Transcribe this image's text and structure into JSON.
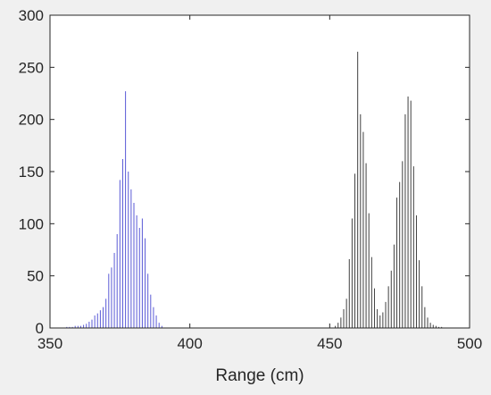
{
  "chart_data": {
    "type": "bar",
    "title": "",
    "xlabel": "Range (cm)",
    "ylabel": "",
    "xlim": [
      350,
      500
    ],
    "ylim": [
      0,
      300
    ],
    "xticks": [
      350,
      400,
      450,
      500
    ],
    "yticks": [
      0,
      50,
      100,
      150,
      200,
      250,
      300
    ],
    "grid": false,
    "series": [
      {
        "color": "#5a5ad6",
        "x": [
          356,
          357,
          358,
          359,
          360,
          361,
          362,
          363,
          364,
          365,
          366,
          367,
          368,
          369,
          370,
          371,
          372,
          373,
          374,
          375,
          376,
          377,
          378,
          379,
          380,
          381,
          382,
          383,
          384,
          385,
          386,
          387,
          388,
          389,
          390
        ],
        "values": [
          1,
          1,
          1,
          2,
          2,
          2,
          3,
          4,
          6,
          8,
          12,
          14,
          17,
          20,
          28,
          52,
          58,
          72,
          90,
          142,
          162,
          227,
          150,
          133,
          120,
          108,
          96,
          105,
          86,
          52,
          32,
          20,
          12,
          5,
          2
        ]
      },
      {
        "color": "#404040",
        "x": [
          452,
          453,
          454,
          455,
          456,
          457,
          458,
          459,
          460,
          461,
          462,
          463,
          464,
          465,
          466,
          467,
          468,
          469,
          470,
          471,
          472,
          473,
          474,
          475,
          476,
          477,
          478,
          479,
          480,
          481,
          482,
          483,
          484,
          485,
          486,
          487,
          488,
          489,
          490
        ],
        "values": [
          2,
          5,
          10,
          18,
          28,
          66,
          105,
          148,
          265,
          205,
          188,
          158,
          110,
          68,
          38,
          18,
          12,
          15,
          25,
          40,
          55,
          80,
          125,
          140,
          160,
          205,
          222,
          218,
          155,
          108,
          65,
          40,
          20,
          10,
          5,
          3,
          2,
          1,
          1
        ]
      }
    ]
  }
}
